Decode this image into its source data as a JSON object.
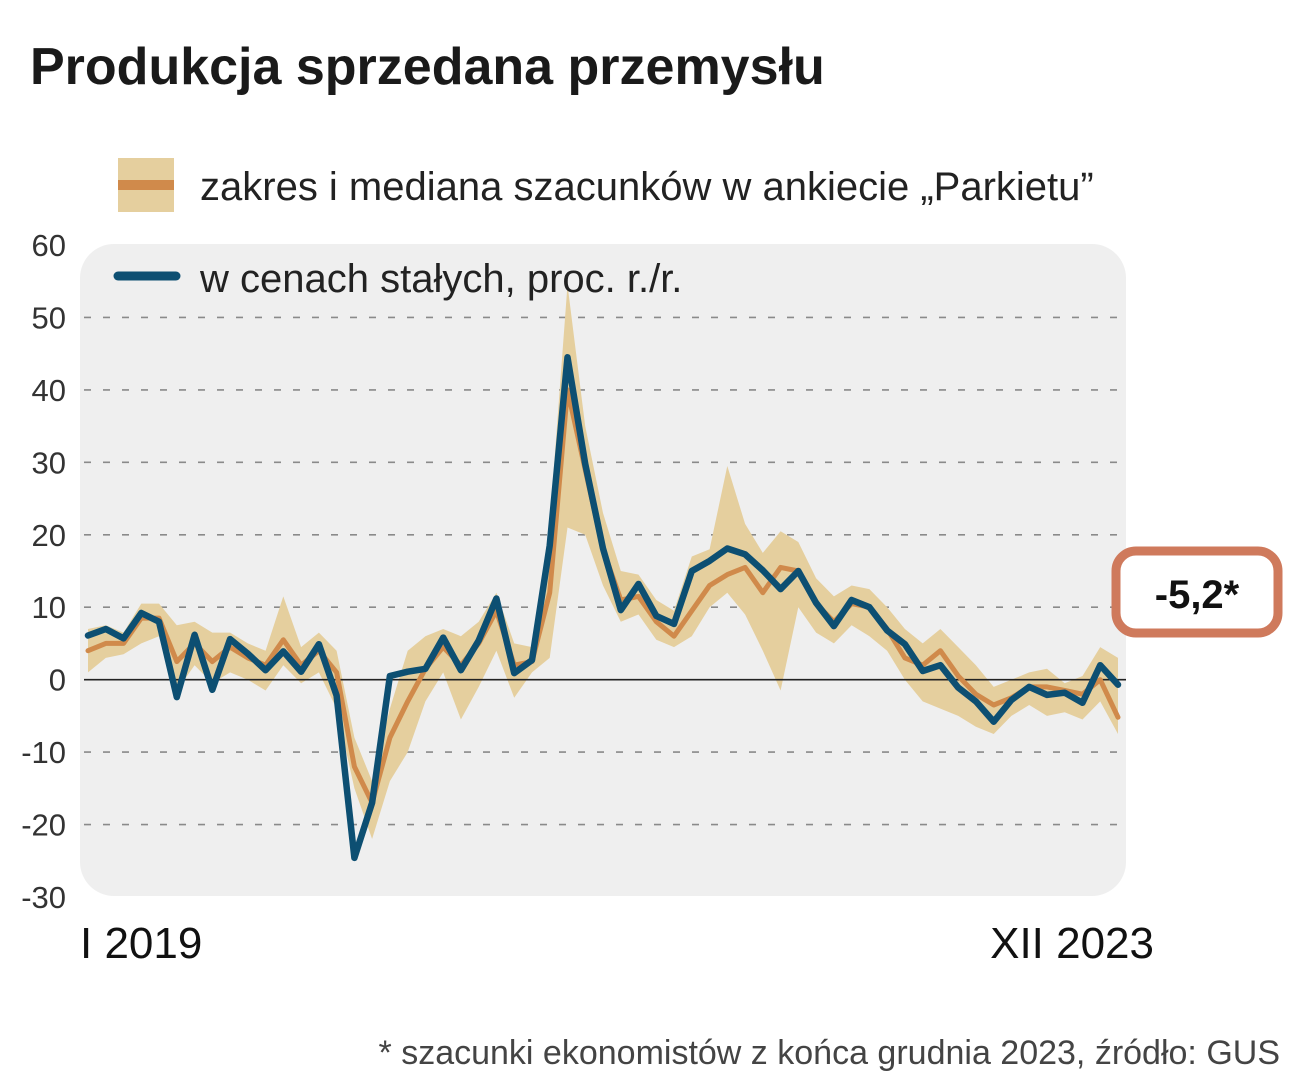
{
  "title": "Produkcja sprzedana przemysłu",
  "legend": {
    "band_label": "zakres i mediana szacunków w ankiecie „Parkietu”",
    "line_label": "w cenach stałych, proc. r./r."
  },
  "x_labels": {
    "start": "I 2019",
    "end": "XII 2023"
  },
  "footnote": "* szacunki ekonomistów z końca grudnia 2023, źródło: GUS",
  "callout": {
    "text": "-5,2*"
  },
  "colors": {
    "actual_line": "#0d4f72",
    "median_line": "#d08a4b",
    "range_band": "#e5cf9e",
    "plot_background": "#efefef",
    "callout_border": "#cf7a5c"
  },
  "chart_data": {
    "type": "line",
    "title": "Produkcja sprzedana przemysłu",
    "ylim": [
      -30,
      60
    ],
    "yticks": [
      60,
      50,
      40,
      30,
      20,
      10,
      0,
      -10,
      -20,
      -30
    ],
    "grid": true,
    "legend_position": "top-left",
    "series": [
      {
        "name": "w cenach stałych, proc. r./r.",
        "kind": "line",
        "values": [
          6.1,
          7.0,
          5.7,
          9.2,
          8.0,
          -2.4,
          6.2,
          -1.4,
          5.6,
          3.6,
          1.3,
          3.9,
          1.1,
          4.9,
          -2.2,
          -24.6,
          -17.0,
          0.5,
          1.1,
          1.5,
          5.8,
          1.3,
          5.4,
          11.2,
          0.9,
          2.7,
          18.5,
          44.5,
          29.8,
          18.1,
          9.6,
          13.2,
          8.8,
          7.7,
          15.0,
          16.4,
          18.1,
          17.3,
          15.1,
          12.5,
          15.0,
          10.6,
          7.4,
          11.0,
          10.0,
          6.8,
          4.9,
          1.2,
          2.0,
          -1.1,
          -3.0,
          -5.8,
          -2.8,
          -1.0,
          -2.1,
          -1.8,
          -3.2,
          2.0,
          -0.7
        ],
        "missing_last": true
      },
      {
        "name": "zakres i mediana szacunków w ankiecie „Parkietu” (mediana)",
        "kind": "median",
        "values": [
          4.0,
          5.0,
          5.0,
          8.5,
          8.5,
          2.5,
          5.0,
          2.5,
          4.5,
          3.0,
          2.0,
          5.5,
          2.0,
          4.0,
          1.0,
          -12.0,
          -17.0,
          -8.0,
          -3.0,
          1.5,
          4.5,
          2.0,
          5.0,
          9.5,
          2.0,
          2.5,
          12.0,
          40.0,
          29.0,
          18.0,
          11.0,
          11.5,
          8.0,
          6.0,
          9.5,
          13.0,
          14.5,
          15.5,
          12.0,
          15.5,
          15.0,
          10.5,
          8.0,
          10.5,
          10.0,
          7.0,
          3.0,
          2.0,
          4.0,
          0.5,
          -2.0,
          -3.5,
          -2.5,
          -1.0,
          -1.0,
          -1.5,
          -2.0,
          0.0,
          -5.2
        ]
      },
      {
        "name": "zakres i mediana szacunków w ankiecie „Parkietu” (zakres)",
        "kind": "band",
        "low": [
          1.0,
          3.0,
          3.5,
          5.0,
          6.0,
          -1.5,
          2.0,
          -0.5,
          1.0,
          0.0,
          -1.5,
          2.0,
          -0.5,
          1.0,
          -4.0,
          -15.0,
          -22.0,
          -14.0,
          -10.0,
          -3.0,
          1.0,
          -5.5,
          -1.0,
          4.0,
          -2.5,
          1.0,
          3.0,
          21.0,
          20.0,
          13.0,
          8.0,
          9.0,
          5.5,
          4.5,
          6.0,
          10.0,
          12.0,
          9.0,
          4.0,
          -1.5,
          10.0,
          6.5,
          5.0,
          7.5,
          6.0,
          4.0,
          0.0,
          -3.0,
          -4.0,
          -5.0,
          -6.5,
          -7.5,
          -5.0,
          -3.5,
          -5.0,
          -4.5,
          -5.5,
          -3.0,
          -7.5
        ],
        "high": [
          7.0,
          7.5,
          6.5,
          10.5,
          10.5,
          7.5,
          8.0,
          6.5,
          6.5,
          5.0,
          4.0,
          11.5,
          4.5,
          6.5,
          4.0,
          -8.0,
          -14.0,
          -4.0,
          4.0,
          6.0,
          7.0,
          6.0,
          8.0,
          12.0,
          5.0,
          4.5,
          21.5,
          54.5,
          35.0,
          23.0,
          15.0,
          14.5,
          11.0,
          9.5,
          17.0,
          18.0,
          29.5,
          21.5,
          17.5,
          20.5,
          19.0,
          14.0,
          11.5,
          13.0,
          12.5,
          10.0,
          7.0,
          5.0,
          7.0,
          4.5,
          2.0,
          -1.0,
          0.0,
          1.0,
          1.5,
          -0.5,
          0.5,
          4.5,
          3.0
        ]
      }
    ]
  }
}
